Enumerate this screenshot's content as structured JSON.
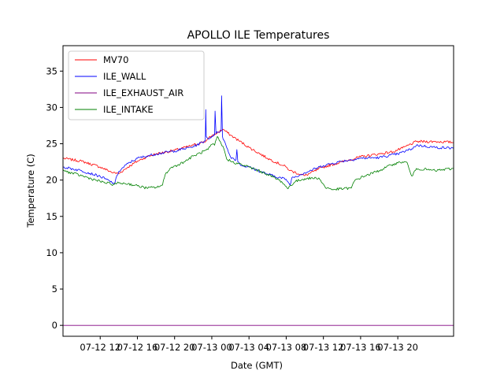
{
  "chart_data": {
    "type": "line",
    "title": "APOLLO ILE Temperatures",
    "xlabel": "Date (GMT)",
    "ylabel": "Temperature (C)",
    "xlim": [
      0,
      42
    ],
    "ylim": [
      -1.5,
      38.5
    ],
    "y_ticks": [
      0,
      5,
      10,
      15,
      20,
      25,
      30,
      35
    ],
    "x_ticks": [
      {
        "hour": 4,
        "label": "07-12 12"
      },
      {
        "hour": 8,
        "label": "07-12 16"
      },
      {
        "hour": 12,
        "label": "07-12 20"
      },
      {
        "hour": 16,
        "label": "07-13 00"
      },
      {
        "hour": 20,
        "label": "07-13 04"
      },
      {
        "hour": 24,
        "label": "07-13 08"
      },
      {
        "hour": 28,
        "label": "07-13 12"
      },
      {
        "hour": 32,
        "label": "07-13 16"
      },
      {
        "hour": 36,
        "label": "07-13 20"
      }
    ],
    "legend_position": "top-left",
    "series": [
      {
        "name": "MV70",
        "color": "#ff0000",
        "x": [
          0,
          2,
          4,
          5.4,
          6,
          7,
          8,
          9,
          10,
          12,
          14,
          15.4,
          16,
          16.6,
          17.2,
          18,
          20,
          22,
          24,
          24.4,
          26,
          28,
          30,
          32,
          34,
          35.5,
          36.5,
          38,
          40,
          42
        ],
        "y": [
          23.0,
          22.6,
          21.8,
          21.0,
          20.9,
          21.8,
          22.6,
          23.2,
          23.6,
          24.1,
          24.8,
          25.4,
          26.1,
          26.5,
          27.0,
          26.2,
          24.5,
          23.0,
          21.8,
          21.3,
          20.6,
          21.8,
          22.5,
          23.2,
          23.6,
          23.9,
          24.4,
          25.3,
          25.3,
          25.2
        ]
      },
      {
        "name": "ILE_WALL",
        "color": "#0000ff",
        "x": [
          0,
          2,
          4,
          5.4,
          5.5,
          6,
          7,
          8,
          9,
          10,
          12,
          14,
          15.3,
          15.35,
          15.4,
          15.6,
          16,
          16.3,
          16.35,
          16.45,
          16.6,
          17.0,
          17.05,
          17.15,
          17.3,
          17.6,
          18,
          18.6,
          18.7,
          18.8,
          19.2,
          20,
          22,
          24,
          24.4,
          24.6,
          26,
          28,
          30,
          32,
          34,
          36,
          37.5,
          38,
          40,
          42
        ],
        "y": [
          21.8,
          21.3,
          20.5,
          19.6,
          19.4,
          21.2,
          22.3,
          23.0,
          23.3,
          23.6,
          24.0,
          24.6,
          25.4,
          29.7,
          26.0,
          25.7,
          26.0,
          26.2,
          29.5,
          26.4,
          26.6,
          26.8,
          31.6,
          26.0,
          25.5,
          24.5,
          23.2,
          22.8,
          24.2,
          22.5,
          22.0,
          21.8,
          20.8,
          20.1,
          19.3,
          20.3,
          21.0,
          22.0,
          22.6,
          23.0,
          23.1,
          23.6,
          24.3,
          24.8,
          24.5,
          24.4
        ]
      },
      {
        "name": "ILE_EXHAUST_AIR",
        "color": "#800080",
        "x": [
          0,
          42
        ],
        "y": [
          0,
          0
        ]
      },
      {
        "name": "ILE_INTAKE",
        "color": "#008000",
        "x": [
          0,
          2,
          4,
          5.4,
          6,
          7,
          8,
          9,
          10,
          10.7,
          11,
          11.5,
          13,
          14,
          15.6,
          16,
          16.3,
          16.6,
          17.0,
          17.3,
          17.6,
          18.2,
          20,
          22,
          23.5,
          24.2,
          24.4,
          25,
          26,
          27.5,
          28.2,
          29,
          31,
          31.4,
          32.5,
          34,
          35.5,
          36.5,
          37,
          37.4,
          37.6,
          38,
          40,
          42
        ],
        "y": [
          21.3,
          20.6,
          19.8,
          19.4,
          19.6,
          19.5,
          19.2,
          18.9,
          19.0,
          19.3,
          20.8,
          21.6,
          22.5,
          23.3,
          24.2,
          24.9,
          24.8,
          26.0,
          25.0,
          24.3,
          22.9,
          22.5,
          21.8,
          20.8,
          19.8,
          18.8,
          19.2,
          19.8,
          20.2,
          20.3,
          19.0,
          18.7,
          18.9,
          20.0,
          20.6,
          21.3,
          22.2,
          22.5,
          22.4,
          20.8,
          20.6,
          21.6,
          21.3,
          21.6
        ]
      }
    ]
  }
}
